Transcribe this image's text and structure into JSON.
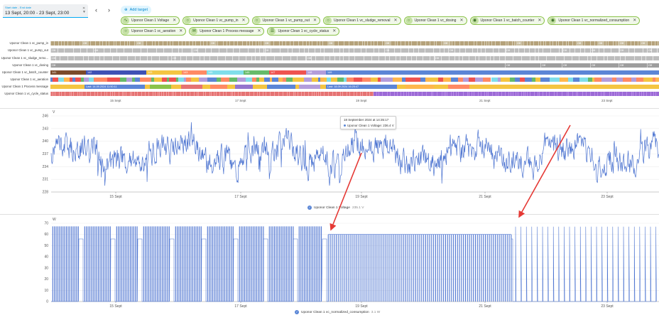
{
  "toolbar": {
    "date_label": "Start date - End date",
    "date_value": "13 Sept, 20:00 - 23 Sept, 23:00",
    "prev_icon": "chevron-left-icon",
    "next_icon": "chevron-right-icon",
    "add_target": "Add target"
  },
  "chips": [
    {
      "label": "Uponor Clean 1 Voltage",
      "icon": "wave-icon"
    },
    {
      "label": "Uponor Clean 1 vc_pump_in",
      "icon": "circle-icon"
    },
    {
      "label": "Uponor Clean 1 vc_pump_out",
      "icon": "circle-icon"
    },
    {
      "label": "Uponor Clean 1 vc_sludge_removal",
      "icon": "circle-icon"
    },
    {
      "label": "Uponor Clean 1 vc_dosing",
      "icon": "circle-icon"
    },
    {
      "label": "Uponor Clean 1 vc_batch_counter",
      "icon": "eye-icon"
    },
    {
      "label": "Uponor Clean 1 vc_normalized_consumption",
      "icon": "eye-icon"
    },
    {
      "label": "Uponor Clean 1 vc_aeration",
      "icon": "circle-icon"
    },
    {
      "label": "Uponor Clean 1 Process message",
      "icon": "message-icon"
    },
    {
      "label": "Uponor Clean 1 vc_cycle_status",
      "icon": "list-icon"
    }
  ],
  "timeline": {
    "rows": [
      {
        "label": "Uponor Clean 1 vc_pump_in",
        "seg_text": "Off"
      },
      {
        "label": "Uponor Clean 1 vc_pump_out",
        "seg_text": "Off"
      },
      {
        "label": "Uponor Clean 1 vc_sludge_remo...",
        "seg_text": "Off"
      },
      {
        "label": "Uponor Clean 1 vc_dosing",
        "seg_text": "Off"
      },
      {
        "label": "Uponor Clean 1 vc_batch_counter",
        "batch_values": [
          "141",
          "142",
          "143",
          "143",
          "145",
          "145",
          "147",
          "148",
          "149"
        ]
      },
      {
        "label": "Uponor Clean 1 vc_aeration",
        "seg_text": ""
      },
      {
        "label": "Uponor Clean 1 Process message",
        "messages": [
          "Last: 14.09.2024 11:50:11",
          "Last: 18.09.2024 16:25:47"
        ]
      },
      {
        "label": "Uponor Clean 1 vc_cycle_status",
        "seg_text": ""
      }
    ],
    "date_labels": [
      "15 Sept",
      "17 Sept",
      "19 Sept",
      "21 Sept",
      "23 Sept"
    ]
  },
  "colors": {
    "pump_in": "#b5a27a",
    "off_gray": "#bdbdbd",
    "dosing": "#9e9e9e",
    "batch": [
      "#7b4b2a",
      "#3f51b5",
      "#f4c542",
      "#ff8a65",
      "#80deea",
      "#66bb6a",
      "#ef5350",
      "#b39ddb",
      "#5c85d6"
    ],
    "line": "#4a72d0",
    "cycle_pink": "#e57373",
    "cycle_purple": "#9c6ad6"
  },
  "chart_data": [
    {
      "type": "line",
      "ylabel": "V",
      "ylim": [
        228,
        246
      ],
      "y_ticks": [
        228,
        231,
        234,
        237,
        240,
        243,
        246
      ],
      "x_ticks": [
        "15 Sept",
        "17 Sept",
        "19 Sept",
        "21 Sept",
        "23 Sept"
      ],
      "series": [
        {
          "name": "Uponor Clean 1 Voltage",
          "legend_value": "235.1 V"
        }
      ],
      "tooltip": {
        "title": "18 September 2024 at 14:35:17",
        "text": "Uponor Clean 1 Voltage: 236.4 V"
      }
    },
    {
      "type": "line",
      "ylabel": "W",
      "ylim": [
        0,
        70
      ],
      "y_ticks": [
        0,
        10,
        20,
        30,
        40,
        50,
        60,
        70
      ],
      "x_ticks": [
        "15 Sept",
        "17 Sept",
        "19 Sept",
        "21 Sept",
        "23 Sept"
      ],
      "series": [
        {
          "name": "Uponor Clean 1 vc_normalized_consumption",
          "legend_value": "3.1 W"
        }
      ]
    }
  ]
}
